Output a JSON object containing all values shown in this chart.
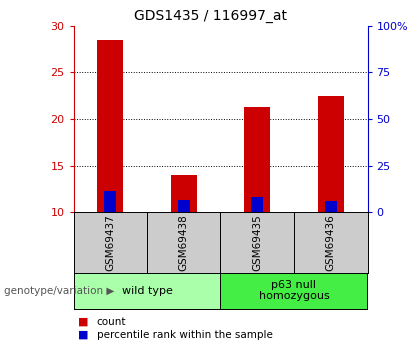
{
  "title": "GDS1435 / 116997_at",
  "samples": [
    "GSM69437",
    "GSM69438",
    "GSM69435",
    "GSM69436"
  ],
  "groups": [
    {
      "label": "wild type",
      "indices": [
        0,
        1
      ],
      "color": "#aaffaa"
    },
    {
      "label": "p63 null\nhomozygous",
      "indices": [
        2,
        3
      ],
      "color": "#44ee44"
    }
  ],
  "red_values": [
    28.5,
    14.0,
    21.3,
    22.5
  ],
  "blue_values": [
    12.3,
    11.3,
    11.6,
    11.2
  ],
  "baseline": 10.0,
  "ylim_left": [
    10,
    30
  ],
  "ylim_right": [
    0,
    100
  ],
  "yticks_left": [
    10,
    15,
    20,
    25,
    30
  ],
  "yticks_right": [
    0,
    25,
    50,
    75,
    100
  ],
  "ytick_labels_right": [
    "0",
    "25",
    "50",
    "75",
    "100%"
  ],
  "red_color": "#cc0000",
  "blue_color": "#0000cc",
  "bar_width": 0.35,
  "sample_box_color": "#cccccc",
  "group_label_text": "genotype/variation",
  "group_arrow": "▶"
}
